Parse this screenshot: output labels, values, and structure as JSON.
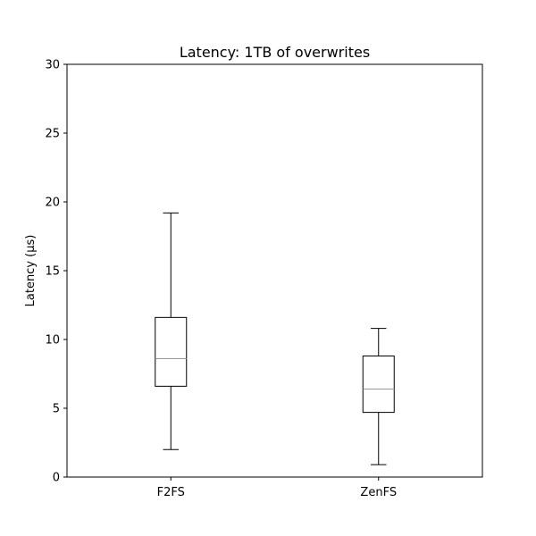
{
  "chart_data": {
    "type": "box",
    "title": "Latency: 1TB of overwrites",
    "xlabel": "",
    "ylabel": "Latency (µs)",
    "ylim": [
      0,
      30
    ],
    "yticks": [
      0,
      5,
      10,
      15,
      20,
      25,
      30
    ],
    "grid": false,
    "categories": [
      "F2FS",
      "ZenFS"
    ],
    "boxes": [
      {
        "category": "F2FS",
        "whisker_low": 2.0,
        "q1": 6.6,
        "median": 8.6,
        "q3": 11.6,
        "whisker_high": 19.2
      },
      {
        "category": "ZenFS",
        "whisker_low": 0.9,
        "q1": 4.7,
        "median": 6.4,
        "q3": 8.8,
        "whisker_high": 10.8
      }
    ],
    "colors": {
      "box": "#000000",
      "median": "#ff7f0e"
    }
  }
}
